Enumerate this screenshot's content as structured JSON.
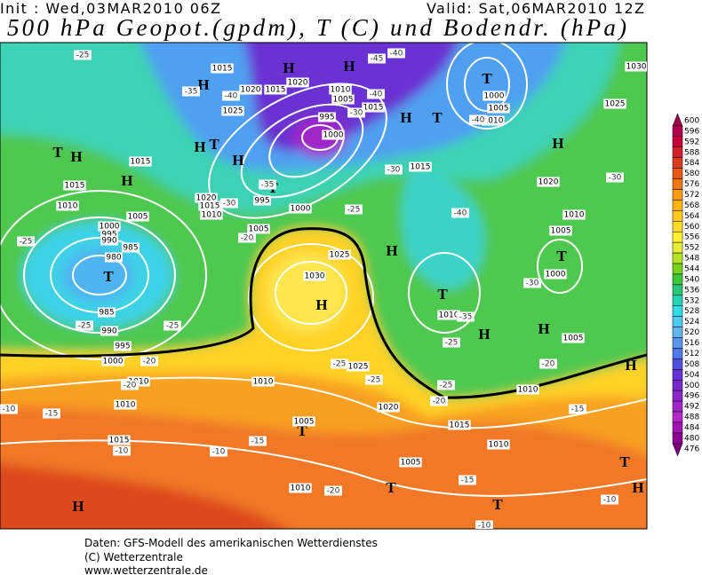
{
  "header": {
    "init": "Init : Wed,03MAR2010 06Z",
    "valid": "Valid: Sat,06MAR2010 12Z",
    "title": "500 hPa Geopot.(gpdm), T (C) und Bodendr. (hPa)"
  },
  "colorbar": {
    "levels": [
      600,
      596,
      592,
      588,
      584,
      580,
      576,
      572,
      568,
      564,
      560,
      556,
      552,
      548,
      544,
      540,
      536,
      532,
      528,
      524,
      520,
      516,
      512,
      508,
      504,
      500,
      496,
      492,
      488,
      484,
      480,
      476
    ],
    "colors": [
      "#a0004a",
      "#b4004c",
      "#c8003c",
      "#d2202a",
      "#dc3c1e",
      "#e65a14",
      "#f07814",
      "#f89c14",
      "#ffb414",
      "#ffc81e",
      "#ffdc28",
      "#fff032",
      "#e6f03c",
      "#b4e628",
      "#78d21e",
      "#3cc83c",
      "#28c878",
      "#28d2b4",
      "#32dce6",
      "#50c8f0",
      "#64b4f0",
      "#5a96f0",
      "#5078e6",
      "#5050dc",
      "#6432d2",
      "#7828c8",
      "#8c28c8",
      "#a028c8",
      "#b428c8",
      "#a014b4",
      "#8c0096",
      "#78007a"
    ]
  },
  "map_labels": {
    "centers": [
      "H",
      "H",
      "T",
      "H",
      "H",
      "T",
      "H",
      "T",
      "H",
      "T",
      "H",
      "H",
      "T",
      "T",
      "H",
      "T",
      "T",
      "H",
      "H",
      "H",
      "H",
      "T",
      "T",
      "T",
      "T",
      "H",
      "H",
      "H"
    ],
    "isobars": [
      "1015",
      "1020",
      "1015",
      "1020",
      "1010",
      "1005",
      "1015",
      "1025",
      "995",
      "1000",
      "1000",
      "1005",
      "1010",
      "1025",
      "1030",
      "1015",
      "1015",
      "1010",
      "1005",
      "1000",
      "995",
      "990",
      "985",
      "980",
      "985",
      "990",
      "995",
      "1000",
      "1010",
      "1010",
      "1015",
      "1020",
      "1015",
      "1010",
      "995",
      "1000",
      "1005",
      "1025",
      "1030",
      "1010",
      "1015",
      "1020",
      "1010",
      "1005",
      "1000",
      "1005",
      "1010",
      "1025",
      "1020",
      "1015",
      "1010",
      "1005",
      "1005",
      "1010",
      "1010"
    ],
    "isotherms": [
      "-25",
      "-35",
      "-40",
      "-45",
      "-40",
      "-40",
      "-30",
      "-35",
      "-30",
      "-25",
      "-30",
      "-40",
      "-40",
      "-30",
      "-30",
      "-35",
      "-25",
      "-25",
      "-25",
      "-25",
      "-20",
      "-20",
      "-25",
      "-25",
      "-20",
      "-25",
      "-20",
      "-20",
      "-15",
      "-10",
      "-10",
      "-10",
      "-15",
      "-20",
      "-15",
      "-15",
      "-10",
      "-10"
    ]
  },
  "footer": [
    "Daten: GFS-Modell des amerikanischen Wetterdienstes",
    "(C) Wetterzentrale",
    "www.wetterzentrale.de"
  ]
}
